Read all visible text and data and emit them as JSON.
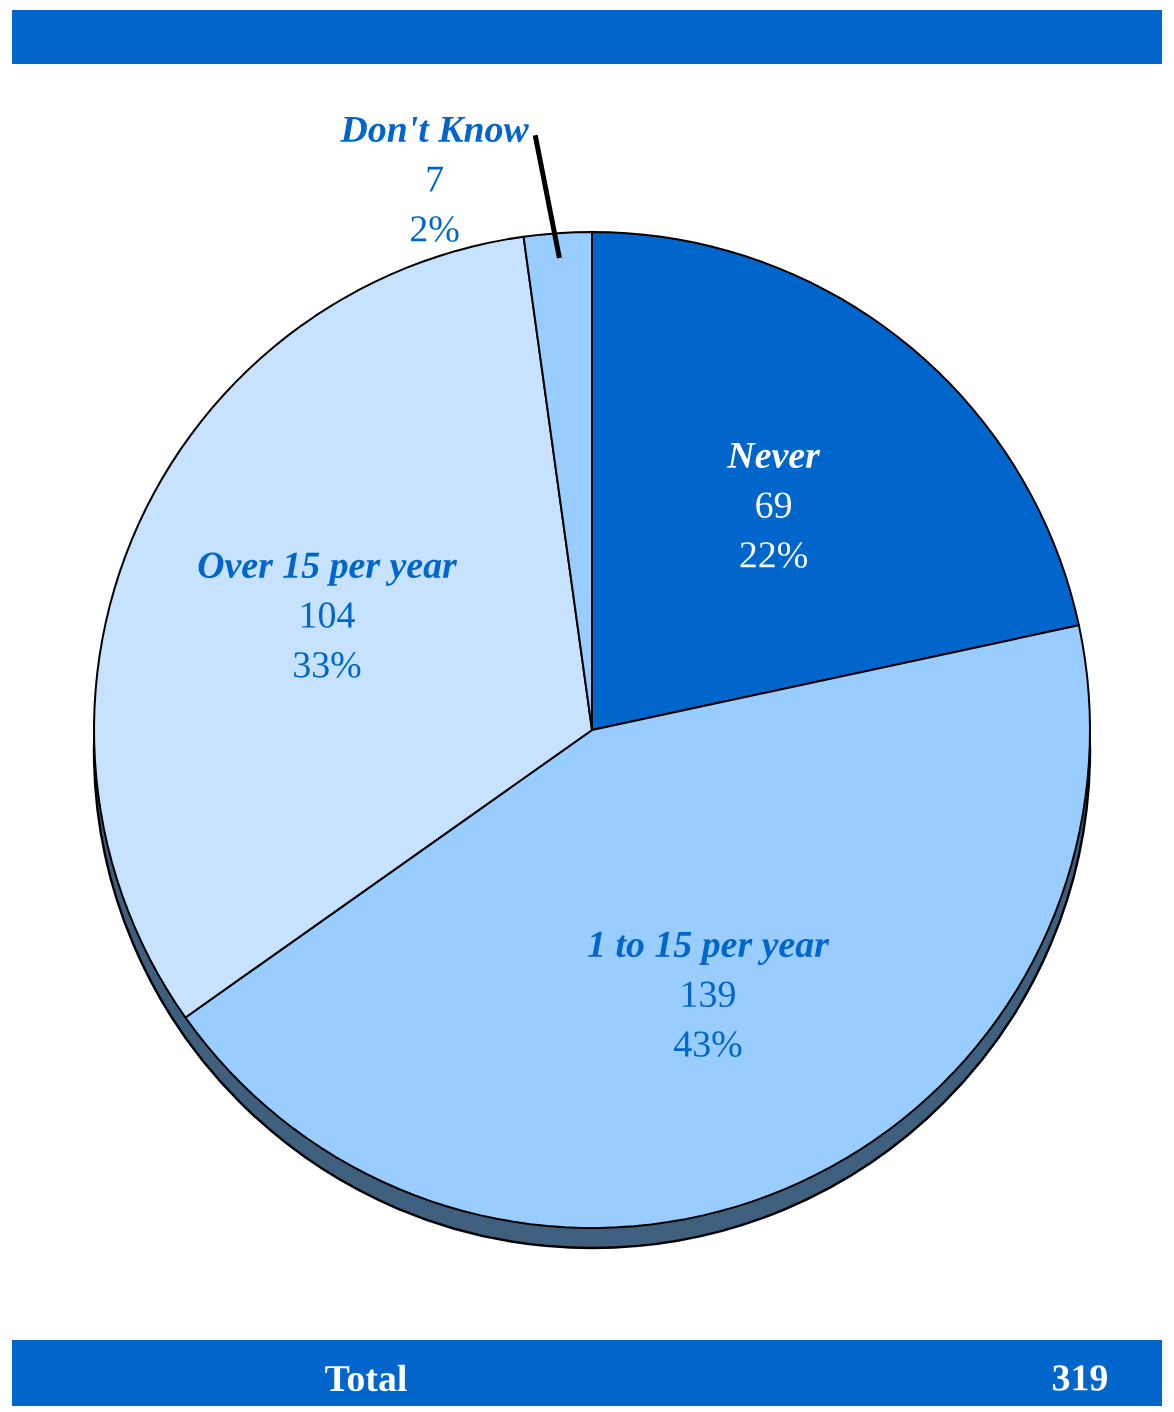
{
  "chart_data": {
    "type": "pie",
    "categories": [
      "Never",
      "1 to 15 per year",
      "Over 15 per year",
      "Don't Know"
    ],
    "values": [
      69,
      139,
      104,
      7
    ],
    "colors": [
      "#0066cc",
      "#99ccff",
      "#c6e2ff",
      "#99ccff"
    ],
    "value_labels": [
      "69",
      "139",
      "104",
      "7"
    ],
    "annotations": [
      {
        "text": "22%",
        "x": "Never"
      },
      {
        "text": "43%",
        "x": "1 to 15 per year"
      },
      {
        "text": "33%",
        "x": "Over 15 per year"
      },
      {
        "text": "2%",
        "x": "Don't Know"
      },
      "Total",
      "319"
    ]
  }
}
